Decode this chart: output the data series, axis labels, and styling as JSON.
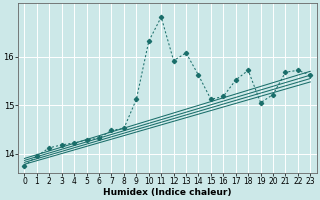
{
  "xlabel": "Humidex (Indice chaleur)",
  "bg_color": "#cce8e8",
  "line_color": "#1a6e6a",
  "grid_color": "#ffffff",
  "xlim": [
    -0.5,
    23.5
  ],
  "ylim": [
    13.6,
    17.1
  ],
  "yticks": [
    14,
    15,
    16
  ],
  "xticks": [
    0,
    1,
    2,
    3,
    4,
    5,
    6,
    7,
    8,
    9,
    10,
    11,
    12,
    13,
    14,
    15,
    16,
    17,
    18,
    19,
    20,
    21,
    22,
    23
  ],
  "jagged_x": [
    0,
    1,
    2,
    3,
    4,
    5,
    6,
    7,
    8,
    9,
    10,
    11,
    12,
    13,
    14,
    15,
    16,
    17,
    18,
    19,
    20,
    21,
    22,
    23
  ],
  "jagged_y": [
    13.75,
    13.95,
    14.12,
    14.18,
    14.22,
    14.28,
    14.32,
    14.48,
    14.52,
    15.12,
    16.32,
    16.82,
    15.92,
    16.08,
    15.62,
    15.12,
    15.18,
    15.52,
    15.72,
    15.05,
    15.22,
    15.68,
    15.72,
    15.62
  ],
  "lines": [
    {
      "x0": 0,
      "y0": 13.78,
      "x1": 23,
      "y1": 15.48
    },
    {
      "x0": 0,
      "y0": 13.82,
      "x1": 23,
      "y1": 15.55
    },
    {
      "x0": 0,
      "y0": 13.86,
      "x1": 23,
      "y1": 15.62
    },
    {
      "x0": 0,
      "y0": 13.9,
      "x1": 23,
      "y1": 15.7
    }
  ],
  "tick_fontsize": 5.5,
  "xlabel_fontsize": 6.5,
  "marker_size": 2.2,
  "linewidth": 0.75
}
